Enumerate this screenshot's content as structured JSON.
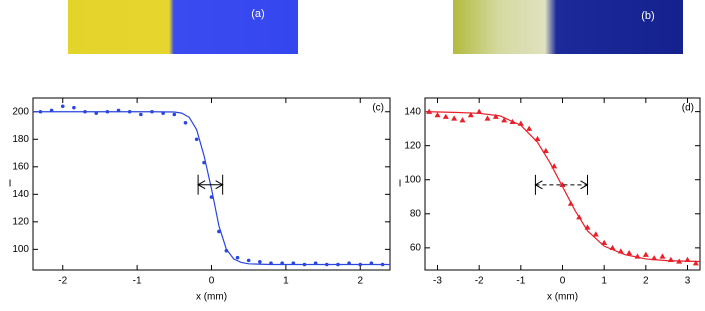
{
  "images": [
    {
      "label": "(a)"
    },
    {
      "label": "(b)"
    }
  ],
  "chart_data": [
    {
      "type": "scatter",
      "panel_label": "(c)",
      "x_label": "x (mm)",
      "y_label": "I",
      "xlim": [
        -2.4,
        2.4
      ],
      "xticks": [
        -2,
        -1,
        0,
        1,
        2
      ],
      "ylim": [
        85,
        210
      ],
      "yticks": [
        100,
        120,
        140,
        160,
        180,
        200
      ],
      "series": [
        {
          "style": "markers",
          "marker": "circle",
          "color": "#2a45e0",
          "x": [
            -2.3,
            -2.15,
            -2.0,
            -1.85,
            -1.7,
            -1.55,
            -1.4,
            -1.25,
            -1.1,
            -0.95,
            -0.8,
            -0.65,
            -0.5,
            -0.35,
            -0.2,
            -0.1,
            0,
            0.1,
            0.2,
            0.35,
            0.5,
            0.65,
            0.8,
            0.95,
            1.1,
            1.25,
            1.4,
            1.55,
            1.7,
            1.85,
            2.0,
            2.15,
            2.3
          ],
          "values": [
            200,
            201,
            204,
            203,
            200,
            199,
            200,
            201,
            200,
            198,
            200,
            199,
            198,
            192,
            180,
            163,
            138,
            113,
            99,
            94,
            92,
            91,
            90,
            90,
            90,
            89,
            90,
            89,
            89,
            90,
            89,
            90,
            89
          ]
        },
        {
          "style": "line",
          "color": "#2a45e0",
          "x": [
            -2.4,
            -1.5,
            -0.8,
            -0.5,
            -0.4,
            -0.3,
            -0.2,
            -0.1,
            0,
            0.1,
            0.2,
            0.3,
            0.4,
            0.5,
            0.8,
            1.5,
            2.4
          ],
          "values": [
            200,
            200,
            200,
            199.8,
            199,
            196,
            187,
            168,
            144,
            117,
            100,
            93,
            90.5,
            89.5,
            89,
            89,
            89
          ]
        }
      ],
      "interval": {
        "x": [
          -0.18,
          0.15
        ],
        "y": 147,
        "dashed": false
      }
    },
    {
      "type": "scatter",
      "panel_label": "(d)",
      "x_label": "x (mm)",
      "y_label": "I",
      "xlim": [
        -3.3,
        3.3
      ],
      "xticks": [
        -3,
        -2,
        -1,
        0,
        1,
        2,
        3
      ],
      "ylim": [
        47,
        148
      ],
      "yticks": [
        60,
        80,
        100,
        120,
        140
      ],
      "series": [
        {
          "style": "markers",
          "marker": "triangle",
          "color": "#e8202a",
          "x": [
            -3.2,
            -3.0,
            -2.8,
            -2.6,
            -2.4,
            -2.2,
            -2.0,
            -1.8,
            -1.6,
            -1.4,
            -1.2,
            -1.0,
            -0.8,
            -0.6,
            -0.4,
            -0.2,
            0,
            0.2,
            0.4,
            0.6,
            0.8,
            1.0,
            1.2,
            1.4,
            1.6,
            1.8,
            2.0,
            2.2,
            2.4,
            2.6,
            2.8,
            3.0,
            3.2
          ],
          "values": [
            140,
            138,
            137,
            136,
            135,
            138,
            140,
            136,
            137,
            135,
            134,
            133,
            130,
            124,
            117,
            108,
            97,
            86,
            78,
            72,
            68,
            63,
            60,
            58,
            57,
            55,
            56,
            54,
            55,
            53,
            52,
            53,
            51
          ]
        },
        {
          "style": "line",
          "color": "#e8202a",
          "x": [
            -3.3,
            -2.5,
            -2,
            -1.5,
            -1,
            -0.6,
            -0.3,
            0,
            0.3,
            0.6,
            1,
            1.5,
            2,
            2.5,
            3.3
          ],
          "values": [
            140,
            139.5,
            139,
            137.5,
            132,
            122,
            110,
            96,
            82,
            70,
            61,
            56,
            53.5,
            52.5,
            52
          ]
        }
      ],
      "interval": {
        "x": [
          -0.65,
          0.6
        ],
        "y": 97,
        "dashed": true
      }
    }
  ]
}
